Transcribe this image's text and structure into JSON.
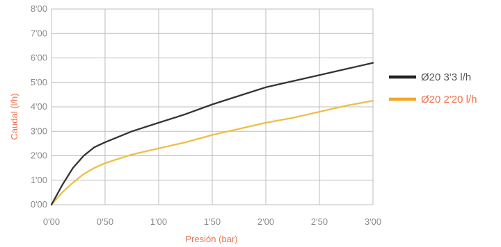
{
  "chart_data": {
    "type": "line",
    "xlabel": "Presión (bar)",
    "ylabel": "Caudal (l/h)",
    "xlim": [
      0,
      3
    ],
    "ylim": [
      0,
      8
    ],
    "x_ticks": [
      0,
      0.5,
      1,
      1.5,
      2,
      2.5,
      3
    ],
    "x_tick_labels": [
      "0'00",
      "0'50",
      "1'00",
      "1'50",
      "2'00",
      "2'50",
      "3'00"
    ],
    "y_ticks": [
      0,
      1,
      2,
      3,
      4,
      5,
      6,
      7,
      8
    ],
    "y_tick_labels": [
      "0'00",
      "1'00",
      "2'00",
      "3'00",
      "4'00",
      "5'00",
      "6'00",
      "7'00",
      "8'00"
    ],
    "grid": true,
    "legend_position": "right",
    "label_color": "#f0714a",
    "series": [
      {
        "name": "Ø20 3'3 l/h",
        "color": "#333333",
        "legend_color": "#222222",
        "points": [
          [
            0,
            0
          ],
          [
            0.1,
            0.8
          ],
          [
            0.2,
            1.5
          ],
          [
            0.3,
            2.0
          ],
          [
            0.4,
            2.35
          ],
          [
            0.5,
            2.55
          ],
          [
            0.75,
            3.0
          ],
          [
            1.0,
            3.35
          ],
          [
            1.25,
            3.7
          ],
          [
            1.5,
            4.1
          ],
          [
            1.75,
            4.45
          ],
          [
            2.0,
            4.8
          ],
          [
            2.25,
            5.05
          ],
          [
            2.5,
            5.3
          ],
          [
            2.75,
            5.55
          ],
          [
            3.0,
            5.8
          ]
        ]
      },
      {
        "name": "Ø20 2'20 l/h",
        "color": "#ecbf45",
        "legend_color": "#f5a623",
        "points": [
          [
            0,
            0
          ],
          [
            0.1,
            0.5
          ],
          [
            0.2,
            0.9
          ],
          [
            0.3,
            1.25
          ],
          [
            0.4,
            1.5
          ],
          [
            0.5,
            1.7
          ],
          [
            0.75,
            2.05
          ],
          [
            1.0,
            2.3
          ],
          [
            1.25,
            2.55
          ],
          [
            1.5,
            2.85
          ],
          [
            1.75,
            3.1
          ],
          [
            2.0,
            3.35
          ],
          [
            2.25,
            3.55
          ],
          [
            2.5,
            3.8
          ],
          [
            2.75,
            4.05
          ],
          [
            3.0,
            4.25
          ]
        ]
      }
    ]
  }
}
